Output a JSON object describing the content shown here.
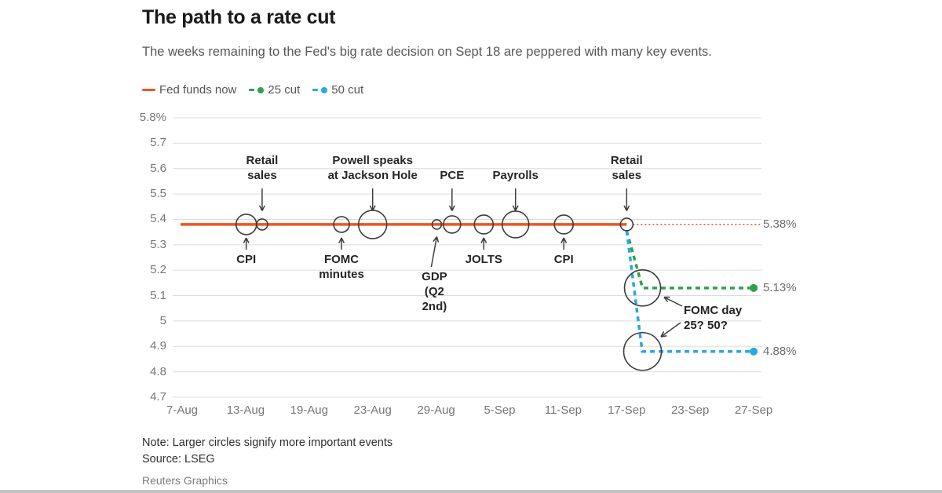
{
  "header": {
    "title": "The path to a rate cut",
    "subtitle": "The weeks remaining to the Fed's big rate decision on Sept 18 are peppered with many key events."
  },
  "legend": {
    "items": [
      {
        "label": "Fed funds now",
        "color": "#f0541e",
        "style": "solid-line"
      },
      {
        "label": "25 cut",
        "color": "#2fa14d",
        "style": "dash-dot"
      },
      {
        "label": "50 cut",
        "color": "#29a8e0",
        "style": "dash-dot"
      }
    ]
  },
  "colors": {
    "orange": "#f0541e",
    "green": "#2fa14d",
    "blue": "#29a8e0",
    "grid": "#dcdcdc",
    "axis_text": "#767676",
    "event_text": "#262626",
    "circle_stroke": "#3d3d3d",
    "arrow": "#3f3f3f",
    "value_label": "#6b6b6b"
  },
  "chart_data": {
    "type": "line",
    "title": "The path to a rate cut",
    "x_axis": {
      "tick_labels": [
        "7-Aug",
        "13-Aug",
        "19-Aug",
        "23-Aug",
        "29-Aug",
        "5-Sep",
        "11-Sep",
        "17-Sep",
        "23-Sep",
        "27-Sep"
      ]
    },
    "y_axis": {
      "tick_labels": [
        "5.8%",
        "5.7",
        "5.6",
        "5.5",
        "5.4",
        "5.3",
        "5.2",
        "5.1",
        "5",
        "4.9",
        "4.8",
        "4.7"
      ],
      "tick_values": [
        5.8,
        5.7,
        5.6,
        5.5,
        5.4,
        5.3,
        5.2,
        5.1,
        5.0,
        4.9,
        4.8,
        4.7
      ],
      "range": [
        4.7,
        5.8
      ],
      "grid": true
    },
    "series": [
      {
        "name": "Fed funds now",
        "kind": "flat",
        "color": "#f0541e",
        "value": 5.38,
        "solid_t": [
          0,
          7.0
        ],
        "dotted_t": [
          7.1,
          9.1
        ],
        "end_label": "5.38%"
      },
      {
        "name": "25 cut",
        "kind": "path",
        "color": "#2fa14d",
        "points": [
          [
            7.0,
            5.355
          ],
          [
            7.25,
            5.13
          ],
          [
            9.0,
            5.13
          ]
        ],
        "end_dot": true,
        "end_label": "5.13%"
      },
      {
        "name": "50 cut",
        "kind": "path",
        "color": "#29a8e0",
        "points": [
          [
            7.0,
            5.355
          ],
          [
            7.245,
            4.88
          ],
          [
            9.0,
            4.88
          ]
        ],
        "end_dot": true,
        "end_label": "4.88%"
      }
    ],
    "events": [
      {
        "label": "CPI",
        "t": 1.01,
        "radius": 13,
        "side": "below"
      },
      {
        "label": "Retail\nsales",
        "t": 1.26,
        "radius": 7,
        "side": "above"
      },
      {
        "label": "FOMC\nminutes",
        "t": 2.51,
        "radius": 10,
        "side": "below"
      },
      {
        "label": "Powell speaks\nat Jackson Hole",
        "t": 3.0,
        "radius": 18,
        "side": "above"
      },
      {
        "label": "GDP\n(Q2\n2nd)",
        "t": 4.01,
        "radius": 6,
        "side": "below",
        "long_arrow": true
      },
      {
        "label": "PCE",
        "t": 4.25,
        "radius": 11,
        "side": "above"
      },
      {
        "label": "JOLTS",
        "t": 4.75,
        "radius": 12,
        "side": "below"
      },
      {
        "label": "Payrolls",
        "t": 5.25,
        "radius": 17,
        "side": "above"
      },
      {
        "label": "CPI",
        "t": 6.01,
        "radius": 12,
        "side": "below"
      },
      {
        "label": "Retail\nsales",
        "t": 7.0,
        "radius": 8,
        "side": "above"
      }
    ],
    "decision_circles": [
      {
        "t": 7.25,
        "value": 5.13,
        "radius": 23
      },
      {
        "t": 7.25,
        "value": 4.88,
        "radius": 24
      }
    ],
    "annotation": {
      "text": "FOMC day\n25? 50?"
    }
  },
  "footer": {
    "note": "Note: Larger circles signify more important events",
    "source": "Source: LSEG",
    "credit": "Reuters Graphics"
  }
}
